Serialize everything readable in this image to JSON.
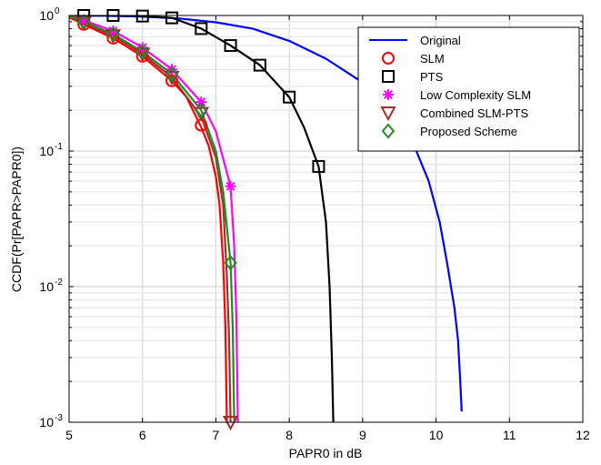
{
  "chart_data": {
    "type": "line",
    "xlabel": "PAPR0 in dB",
    "ylabel": "CCDF(Pr[PAPR>PAPR0])",
    "xlim": [
      5,
      12
    ],
    "ylim": [
      0.001,
      1
    ],
    "yscale": "log",
    "grid": true,
    "minor_grid": true,
    "legend_position": "top-right",
    "x_ticks": [
      "5",
      "6",
      "7",
      "8",
      "9",
      "10",
      "11",
      "12"
    ],
    "y_ticks": [
      {
        "base": "10",
        "exp": "0",
        "value": 1
      },
      {
        "base": "10",
        "exp": "-1",
        "value": 0.1
      },
      {
        "base": "10",
        "exp": "-2",
        "value": 0.01
      },
      {
        "base": "10",
        "exp": "-3",
        "value": 0.001
      }
    ],
    "series": [
      {
        "name": "Original",
        "color": "#0000ff",
        "marker": "none",
        "curve": [
          [
            5.0,
            1.0
          ],
          [
            5.5,
            0.995
          ],
          [
            6.0,
            0.98
          ],
          [
            6.5,
            0.95
          ],
          [
            7.0,
            0.89
          ],
          [
            7.5,
            0.8
          ],
          [
            8.0,
            0.65
          ],
          [
            8.5,
            0.48
          ],
          [
            9.0,
            0.32
          ],
          [
            9.4,
            0.2
          ],
          [
            9.7,
            0.11
          ],
          [
            9.9,
            0.06
          ],
          [
            10.05,
            0.03
          ],
          [
            10.15,
            0.015
          ],
          [
            10.25,
            0.007
          ],
          [
            10.3,
            0.004
          ],
          [
            10.33,
            0.002
          ],
          [
            10.35,
            0.0012
          ]
        ],
        "markers": []
      },
      {
        "name": "SLM",
        "color": "#ff0000",
        "marker": "circle",
        "curve": [
          [
            5.0,
            0.97
          ],
          [
            5.2,
            0.86
          ],
          [
            5.6,
            0.68
          ],
          [
            6.0,
            0.5
          ],
          [
            6.4,
            0.33
          ],
          [
            6.6,
            0.25
          ],
          [
            6.8,
            0.15
          ],
          [
            6.9,
            0.11
          ],
          [
            7.0,
            0.065
          ],
          [
            7.05,
            0.04
          ],
          [
            7.1,
            0.015
          ],
          [
            7.13,
            0.005
          ],
          [
            7.15,
            0.001
          ]
        ],
        "markers": [
          [
            5.2,
            0.86
          ],
          [
            5.6,
            0.68
          ],
          [
            6.0,
            0.5
          ],
          [
            6.4,
            0.33
          ],
          [
            6.8,
            0.155
          ]
        ]
      },
      {
        "name": "PTS",
        "color": "#000000",
        "marker": "square",
        "curve": [
          [
            5.0,
            1.0
          ],
          [
            5.6,
            1.0
          ],
          [
            6.0,
            0.99
          ],
          [
            6.4,
            0.96
          ],
          [
            6.8,
            0.8
          ],
          [
            7.2,
            0.6
          ],
          [
            7.6,
            0.43
          ],
          [
            8.0,
            0.25
          ],
          [
            8.2,
            0.15
          ],
          [
            8.4,
            0.077
          ],
          [
            8.5,
            0.03
          ],
          [
            8.55,
            0.01
          ],
          [
            8.58,
            0.003
          ],
          [
            8.6,
            0.001
          ]
        ],
        "markers": [
          [
            5.2,
            1.0
          ],
          [
            5.6,
            1.0
          ],
          [
            6.0,
            0.99
          ],
          [
            6.4,
            0.96
          ],
          [
            6.8,
            0.8
          ],
          [
            7.2,
            0.6
          ],
          [
            7.6,
            0.43
          ],
          [
            8.0,
            0.25
          ],
          [
            8.4,
            0.077
          ]
        ]
      },
      {
        "name": "Low Complexity SLM",
        "color": "#ff00ff",
        "marker": "asterisk",
        "curve": [
          [
            5.0,
            1.0
          ],
          [
            5.2,
            0.92
          ],
          [
            5.6,
            0.77
          ],
          [
            6.0,
            0.58
          ],
          [
            6.4,
            0.4
          ],
          [
            6.8,
            0.23
          ],
          [
            7.0,
            0.14
          ],
          [
            7.2,
            0.055
          ],
          [
            7.25,
            0.02
          ],
          [
            7.28,
            0.006
          ],
          [
            7.3,
            0.001
          ]
        ],
        "markers": [
          [
            5.2,
            0.92
          ],
          [
            5.6,
            0.77
          ],
          [
            6.0,
            0.58
          ],
          [
            6.4,
            0.4
          ],
          [
            6.8,
            0.23
          ],
          [
            7.2,
            0.055
          ]
        ]
      },
      {
        "name": "Combined SLM-PTS",
        "color": "#a0302a",
        "marker": "triangle-down",
        "curve": [
          [
            5.0,
            0.98
          ],
          [
            5.2,
            0.88
          ],
          [
            5.6,
            0.71
          ],
          [
            6.0,
            0.52
          ],
          [
            6.4,
            0.35
          ],
          [
            6.8,
            0.18
          ],
          [
            7.0,
            0.09
          ],
          [
            7.1,
            0.04
          ],
          [
            7.15,
            0.012
          ],
          [
            7.18,
            0.004
          ],
          [
            7.2,
            0.001
          ]
        ],
        "markers": [
          [
            5.2,
            0.88
          ],
          [
            5.6,
            0.71
          ],
          [
            6.0,
            0.52
          ],
          [
            6.4,
            0.35
          ],
          [
            6.8,
            0.19
          ],
          [
            7.2,
            0.001
          ]
        ]
      },
      {
        "name": "Proposed Scheme",
        "color": "#228b22",
        "marker": "diamond",
        "curve": [
          [
            5.0,
            0.99
          ],
          [
            5.2,
            0.9
          ],
          [
            5.6,
            0.73
          ],
          [
            6.0,
            0.54
          ],
          [
            6.4,
            0.37
          ],
          [
            6.8,
            0.2
          ],
          [
            7.0,
            0.1
          ],
          [
            7.1,
            0.05
          ],
          [
            7.2,
            0.015
          ],
          [
            7.23,
            0.005
          ],
          [
            7.25,
            0.001
          ]
        ],
        "markers": [
          [
            5.2,
            0.9
          ],
          [
            5.6,
            0.73
          ],
          [
            6.0,
            0.54
          ],
          [
            6.4,
            0.37
          ],
          [
            6.8,
            0.2
          ],
          [
            7.2,
            0.015
          ]
        ]
      }
    ]
  }
}
